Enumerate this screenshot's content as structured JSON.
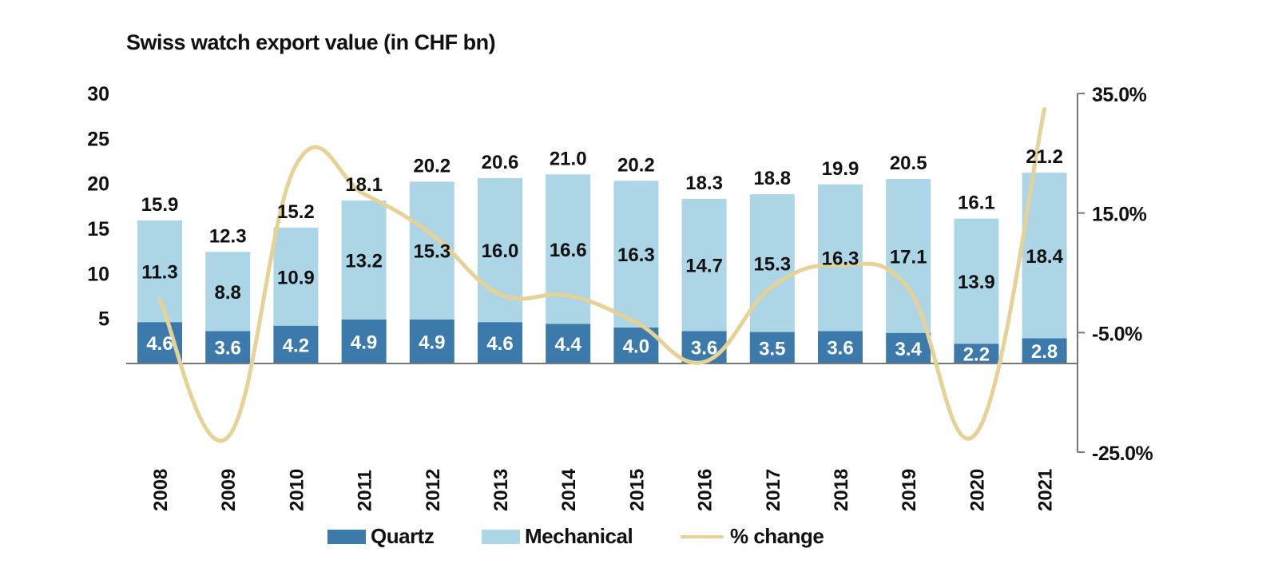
{
  "chart_data": {
    "type": "bar",
    "stacked": true,
    "title": "Swiss watch export value (in CHF bn)",
    "categories": [
      "2008",
      "2009",
      "2010",
      "2011",
      "2012",
      "2013",
      "2014",
      "2015",
      "2016",
      "2017",
      "2018",
      "2019",
      "2020",
      "2021"
    ],
    "series": [
      {
        "name": "Quartz",
        "color": "#3c7aab",
        "label_color": "#ffffff",
        "values": [
          4.6,
          3.6,
          4.2,
          4.9,
          4.9,
          4.6,
          4.4,
          4.0,
          3.6,
          3.5,
          3.6,
          3.4,
          2.2,
          2.8
        ]
      },
      {
        "name": "Mechanical",
        "color": "#acd5e6",
        "label_color": "#111111",
        "values": [
          11.3,
          8.8,
          10.9,
          13.2,
          15.3,
          16.0,
          16.6,
          16.3,
          14.7,
          15.3,
          16.3,
          17.1,
          13.9,
          18.4
        ]
      }
    ],
    "totals": [
      "15.9",
      "12.3",
      "15.2",
      "18.1",
      "20.2",
      "20.6",
      "21.0",
      "20.2",
      "18.3",
      "18.8",
      "19.9",
      "20.5",
      "16.1",
      "21.2"
    ],
    "quartz_labels": [
      "4.6",
      "3.6",
      "4.2",
      "4.9",
      "4.9",
      "4.6",
      "4.4",
      "4.0",
      "3.6",
      "3.5",
      "3.6",
      "3.4",
      "2.2",
      "2.8"
    ],
    "mechanical_labels": [
      "11.3",
      "8.8",
      "10.9",
      "13.2",
      "15.3",
      "16.0",
      "16.6",
      "16.3",
      "14.7",
      "15.3",
      "16.3",
      "17.1",
      "13.9",
      "18.4"
    ],
    "line": {
      "name": "% change",
      "axis": "right",
      "color": "#e6d296",
      "values": [
        0.5,
        -22.5,
        23.0,
        18.2,
        11.4,
        1.4,
        1.2,
        -3.3,
        -9.9,
        2.7,
        6.3,
        2.4,
        -21.8,
        32.4
      ]
    },
    "y_left": {
      "ylim": [
        0,
        30
      ],
      "ticks": [
        "5",
        "10",
        "15",
        "20",
        "25",
        "30"
      ]
    },
    "y_right": {
      "ylim": [
        -25,
        35
      ],
      "ticks": [
        "-25.0%",
        "-5.0%",
        "15.0%",
        "35.0%"
      ]
    },
    "legend": [
      {
        "label": "Quartz",
        "color": "#3c7aab",
        "kind": "bar"
      },
      {
        "label": "Mechanical",
        "color": "#acd5e6",
        "kind": "bar"
      },
      {
        "label": "% change",
        "color": "#e6d296",
        "kind": "line"
      }
    ],
    "legend_position": "bottom-center"
  }
}
